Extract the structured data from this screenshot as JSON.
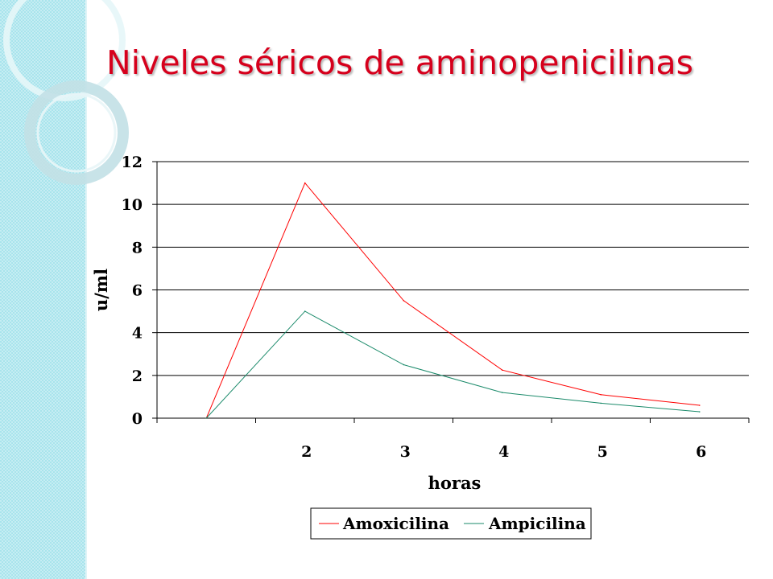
{
  "slide": {
    "title": "Niveles séricos de aminopenicilinas"
  },
  "chart_data": {
    "type": "line",
    "categories": [
      "",
      "2",
      "3",
      "4",
      "5",
      "6"
    ],
    "series": [
      {
        "name": "Amoxicilina",
        "color": "#ff0000",
        "values": [
          0,
          11,
          5.5,
          2.25,
          1.1,
          0.6
        ]
      },
      {
        "name": "Ampicilina",
        "color": "#1a8a6a",
        "values": [
          0,
          5,
          2.5,
          1.2,
          0.7,
          0.3
        ]
      }
    ],
    "xlabel": "horas",
    "ylabel": "u/ml",
    "ylim": [
      0,
      12
    ],
    "yticks": [
      0,
      2,
      4,
      6,
      8,
      10,
      12
    ],
    "grid": true,
    "legend_position": "bottom"
  }
}
